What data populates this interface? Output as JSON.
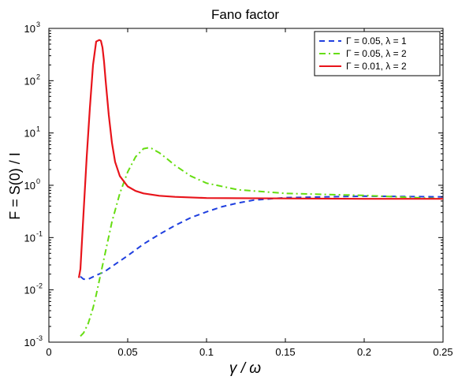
{
  "chart_data": {
    "type": "line",
    "title": "Fano factor",
    "xlabel": "γ / ω",
    "ylabel": "F = S(0) / I",
    "xlim": [
      0,
      0.25
    ],
    "ylim": [
      0.001,
      1000
    ],
    "yscale": "log",
    "grid": false,
    "legend_position": "top-right",
    "x_ticks": [
      0,
      0.05,
      0.1,
      0.15,
      0.2,
      0.25
    ],
    "x_tick_labels": [
      "0",
      "0.05",
      "0.1",
      "0.15",
      "0.2",
      "0.25"
    ],
    "y_ticks": [
      0.001,
      0.01,
      0.1,
      1,
      10,
      100,
      1000
    ],
    "y_tick_labels": [
      {
        "base": "10",
        "exp": "-3"
      },
      {
        "base": "10",
        "exp": "-2"
      },
      {
        "base": "10",
        "exp": "-1"
      },
      {
        "base": "10",
        "exp": "0"
      },
      {
        "base": "10",
        "exp": "1"
      },
      {
        "base": "10",
        "exp": "2"
      },
      {
        "base": "10",
        "exp": "3"
      }
    ],
    "series": [
      {
        "name": "Γ = 0.05, λ = 1",
        "color": "#1f3fdf",
        "style": "dashed",
        "x": [
          0.02,
          0.022,
          0.025,
          0.03,
          0.035,
          0.04,
          0.05,
          0.06,
          0.07,
          0.08,
          0.09,
          0.1,
          0.11,
          0.12,
          0.13,
          0.15,
          0.2,
          0.25
        ],
        "y": [
          0.018,
          0.016,
          0.016,
          0.019,
          0.022,
          0.028,
          0.045,
          0.075,
          0.115,
          0.17,
          0.24,
          0.31,
          0.39,
          0.46,
          0.52,
          0.58,
          0.62,
          0.6
        ]
      },
      {
        "name": "Γ = 0.05, λ = 2",
        "color": "#66dd11",
        "style": "dashdot",
        "x": [
          0.02,
          0.022,
          0.025,
          0.028,
          0.03,
          0.035,
          0.04,
          0.045,
          0.05,
          0.055,
          0.06,
          0.063,
          0.065,
          0.07,
          0.075,
          0.08,
          0.09,
          0.1,
          0.12,
          0.15,
          0.2,
          0.25
        ],
        "y": [
          0.0013,
          0.0015,
          0.0023,
          0.0045,
          0.008,
          0.04,
          0.2,
          0.7,
          1.8,
          3.5,
          5.0,
          5.2,
          5.1,
          4.2,
          3.2,
          2.4,
          1.5,
          1.1,
          0.82,
          0.7,
          0.64,
          0.55
        ]
      },
      {
        "name": "Γ = 0.01, λ = 2",
        "color": "#e8141b",
        "style": "solid",
        "x": [
          0.019,
          0.02,
          0.022,
          0.024,
          0.026,
          0.028,
          0.03,
          0.032,
          0.033,
          0.034,
          0.035,
          0.036,
          0.038,
          0.04,
          0.042,
          0.045,
          0.05,
          0.055,
          0.06,
          0.07,
          0.08,
          0.1,
          0.15,
          0.2,
          0.25
        ],
        "y": [
          0.017,
          0.025,
          0.3,
          3.5,
          30,
          200,
          560,
          600,
          580,
          430,
          230,
          100,
          22,
          6.5,
          2.8,
          1.5,
          0.95,
          0.78,
          0.7,
          0.63,
          0.6,
          0.57,
          0.56,
          0.55,
          0.55
        ]
      }
    ]
  }
}
